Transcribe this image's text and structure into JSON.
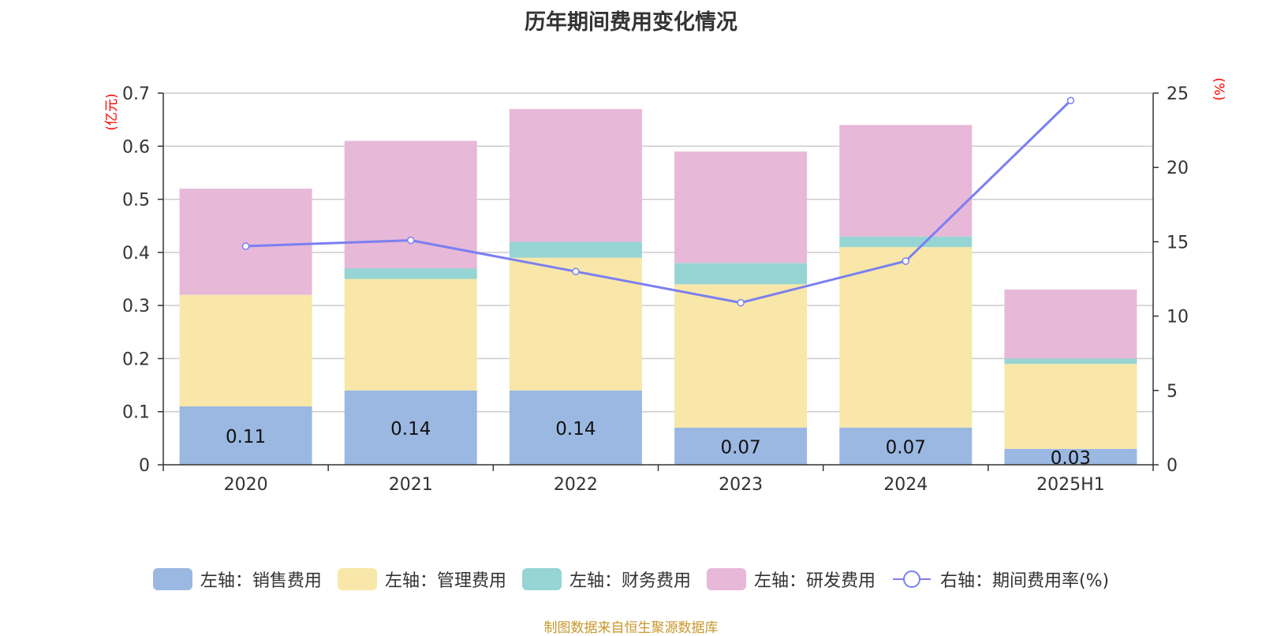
{
  "chart_data": {
    "type": "bar",
    "stacked": true,
    "title": "历年期间费用变化情况",
    "source_note": "制图数据来自恒生聚源数据库",
    "categories": [
      "2020",
      "2021",
      "2022",
      "2023",
      "2024",
      "2025H1"
    ],
    "left_axis": {
      "unit_label": "(亿元)",
      "ylim": [
        0,
        0.7
      ],
      "ticks": [
        "0",
        "0.1",
        "0.2",
        "0.3",
        "0.4",
        "0.5",
        "0.6",
        "0.7"
      ]
    },
    "right_axis": {
      "unit_label": "(%)",
      "ylim": [
        0,
        25
      ],
      "ticks": [
        "0",
        "5",
        "10",
        "15",
        "20",
        "25"
      ]
    },
    "series": [
      {
        "name": "左轴：销售费用",
        "axis": "left",
        "color": "#9bb8e2",
        "values": [
          0.11,
          0.14,
          0.14,
          0.07,
          0.07,
          0.03
        ],
        "labels": [
          "0.11",
          "0.14",
          "0.14",
          "0.07",
          "0.07",
          "0.03"
        ]
      },
      {
        "name": "左轴：管理费用",
        "axis": "left",
        "color": "#f8e7a8",
        "values": [
          0.21,
          0.21,
          0.25,
          0.27,
          0.34,
          0.16
        ]
      },
      {
        "name": "左轴：财务费用",
        "axis": "left",
        "color": "#97d4d4",
        "values": [
          0.0,
          0.02,
          0.03,
          0.04,
          0.02,
          0.01
        ]
      },
      {
        "name": "左轴：研发费用",
        "axis": "left",
        "color": "#e7b8d8",
        "values": [
          0.2,
          0.24,
          0.25,
          0.21,
          0.21,
          0.13
        ]
      }
    ],
    "line_series": {
      "name": "右轴：期间费用率(%)",
      "axis": "right",
      "color": "#7b7ff0",
      "values": [
        14.7,
        15.1,
        13.0,
        10.9,
        13.7,
        24.5
      ]
    },
    "grid": true,
    "legend_position": "bottom"
  }
}
